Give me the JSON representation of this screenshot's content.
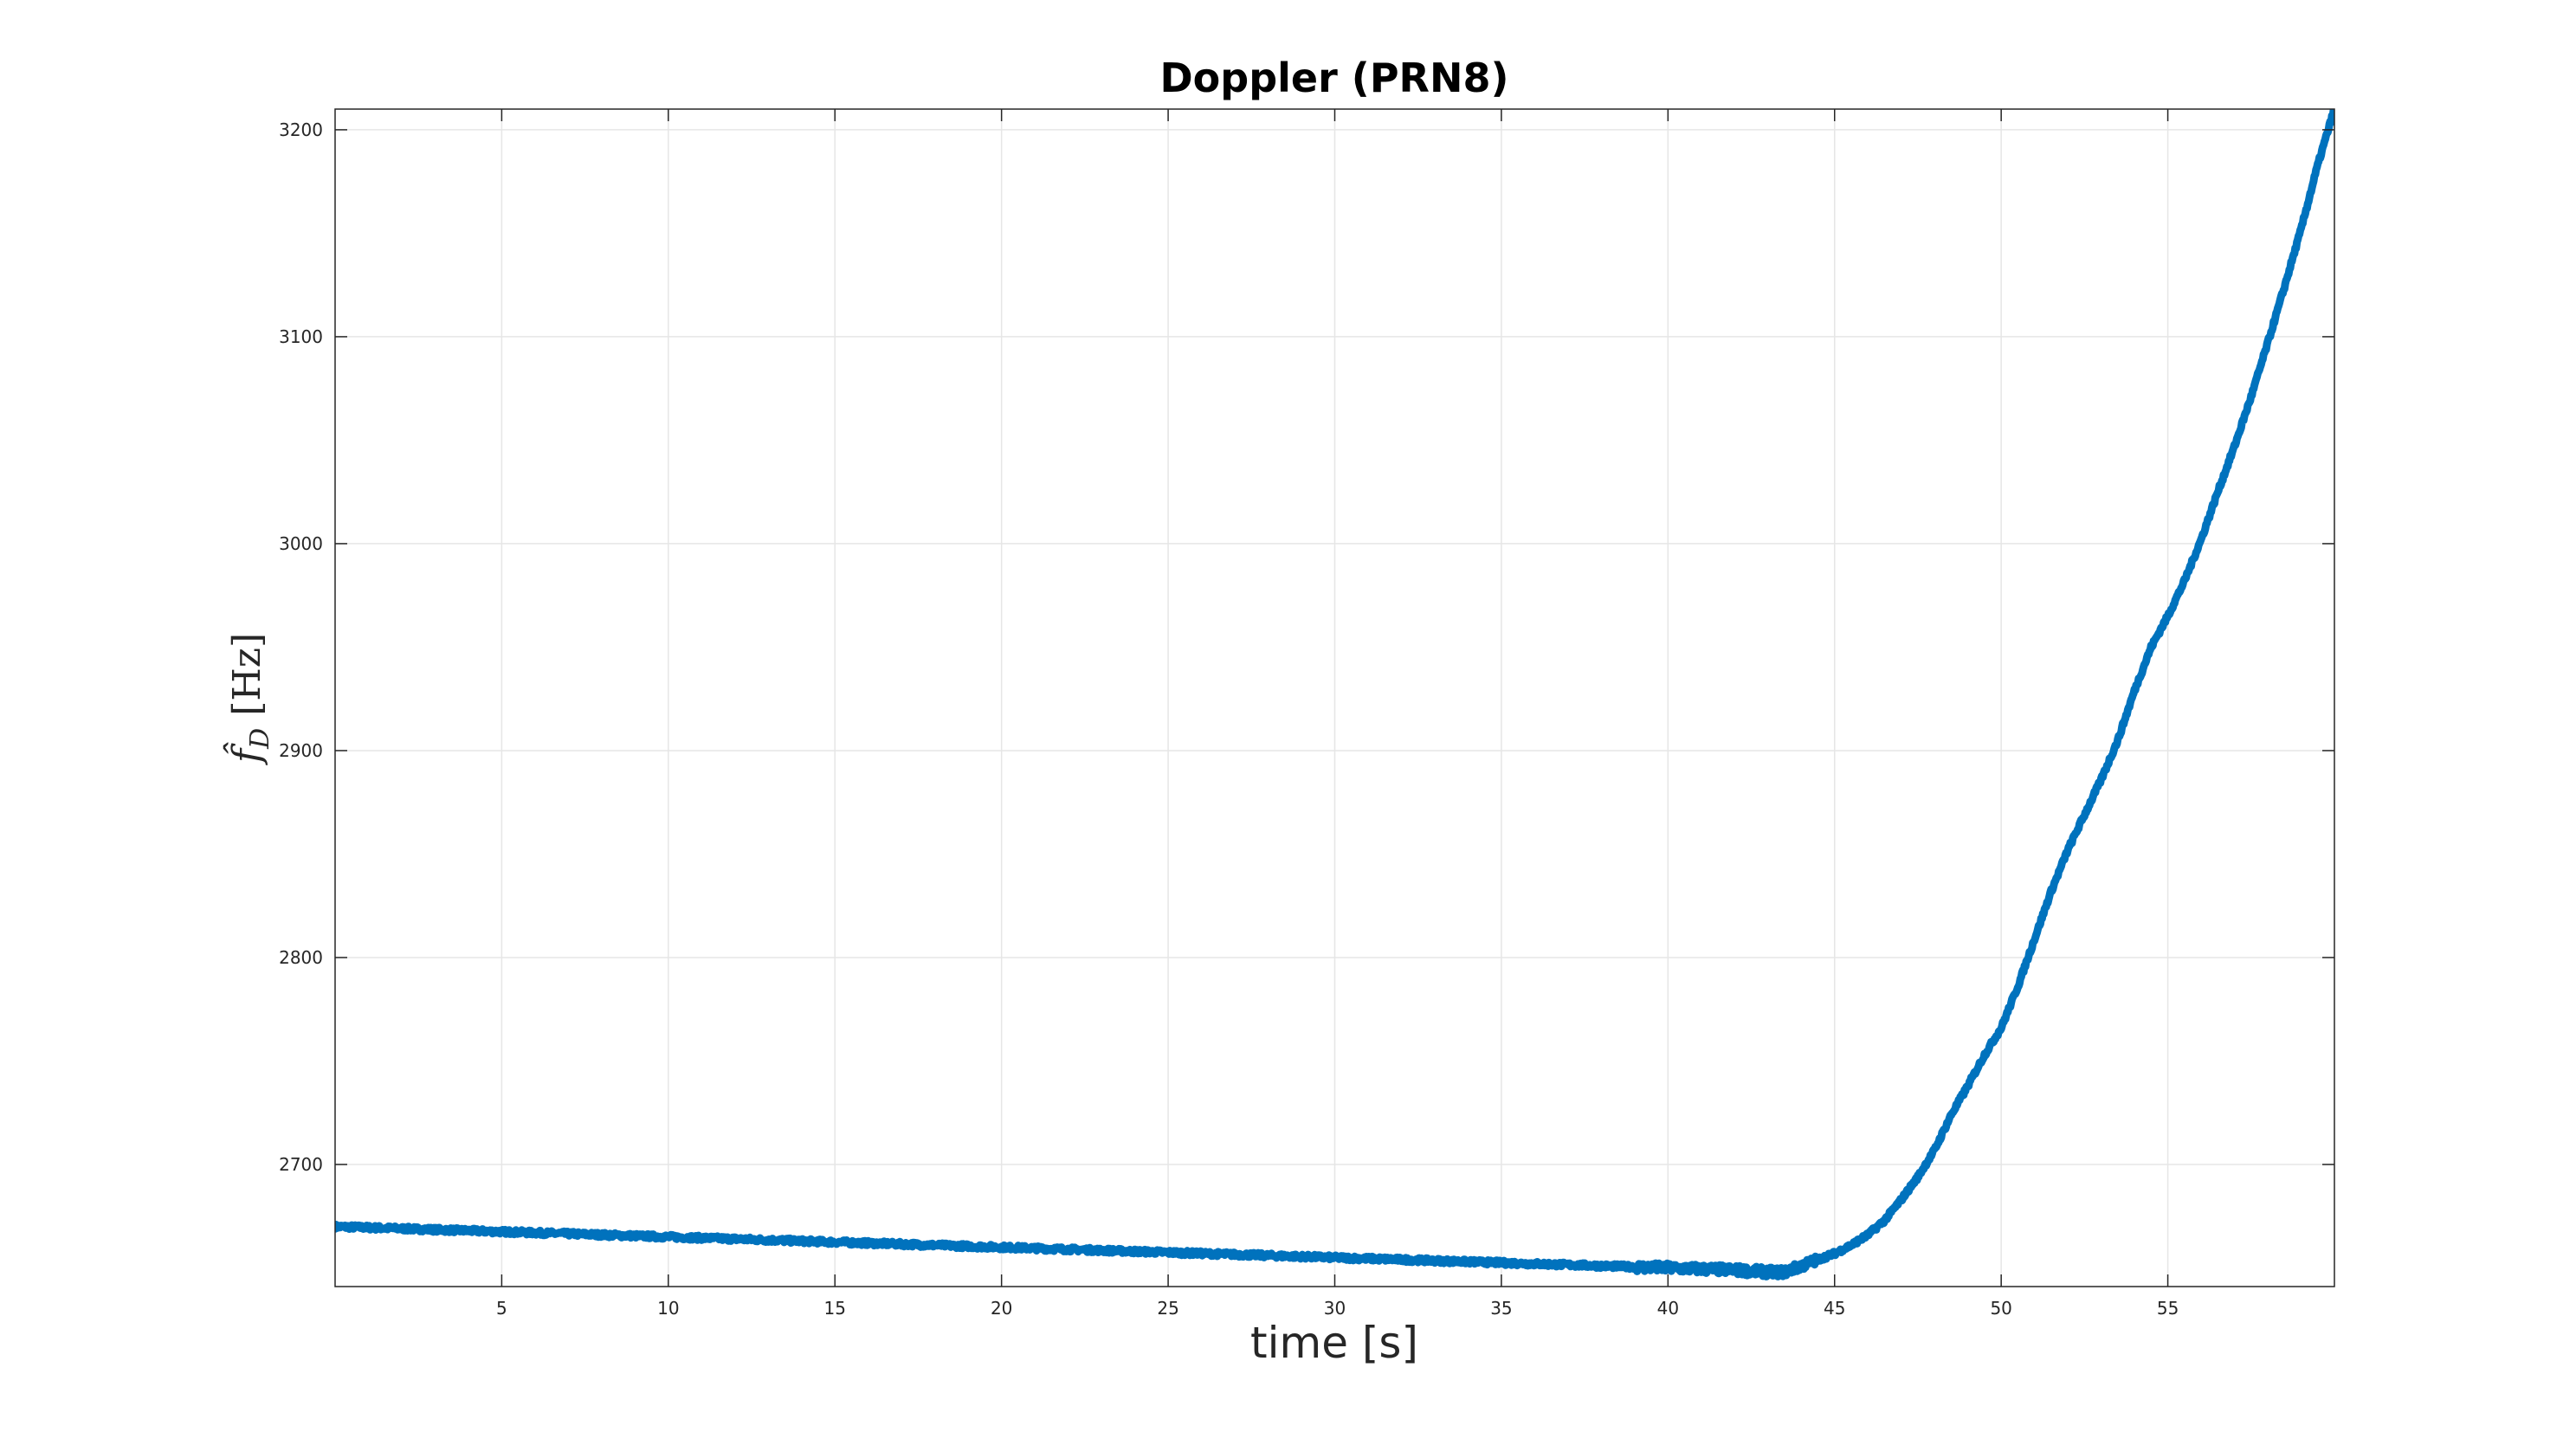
{
  "chart_data": {
    "type": "line",
    "title": "Doppler (PRN8)",
    "xlabel": "time [s]",
    "ylabel": {
      "symbol": "f̂",
      "subscript": "D",
      "unit": "[Hz]"
    },
    "xlim": [
      0,
      60
    ],
    "ylim": [
      2641,
      3210
    ],
    "xticks": [
      5,
      10,
      15,
      20,
      25,
      30,
      35,
      40,
      45,
      50,
      55
    ],
    "yticks": [
      2700,
      2800,
      2900,
      3000,
      3100,
      3200
    ],
    "grid": true,
    "line_color": "#0072BD",
    "series": [
      {
        "x": [
          0,
          2,
          4,
          6,
          8,
          10,
          12,
          14,
          16,
          18,
          20,
          22,
          24,
          26,
          28,
          30,
          32,
          34,
          36,
          38,
          40,
          42,
          43,
          43.5,
          44,
          44.5,
          45,
          45.5,
          46,
          46.5,
          47,
          47.5,
          48,
          48.5,
          49,
          49.5,
          50,
          50.5,
          51,
          51.5,
          52,
          52.5,
          53,
          53.5,
          54,
          54.5,
          55,
          55.5,
          56,
          56.5,
          57,
          57.5,
          58,
          58.5,
          59,
          59.5,
          60
        ],
        "y": [
          2670,
          2669,
          2668,
          2667,
          2666,
          2665,
          2664,
          2663,
          2662,
          2661,
          2660,
          2659,
          2658,
          2657,
          2656,
          2655,
          2654,
          2653,
          2652,
          2651,
          2650,
          2649,
          2648,
          2648,
          2651,
          2654,
          2657,
          2661,
          2666,
          2673,
          2683,
          2694,
          2707,
          2724,
          2738,
          2753,
          2766,
          2786,
          2809,
          2832,
          2852,
          2869,
          2886,
          2905,
          2929,
          2950,
          2965,
          2982,
          3002,
          3025,
          3047,
          3071,
          3097,
          3124,
          3152,
          3183,
          3210
        ]
      }
    ]
  }
}
